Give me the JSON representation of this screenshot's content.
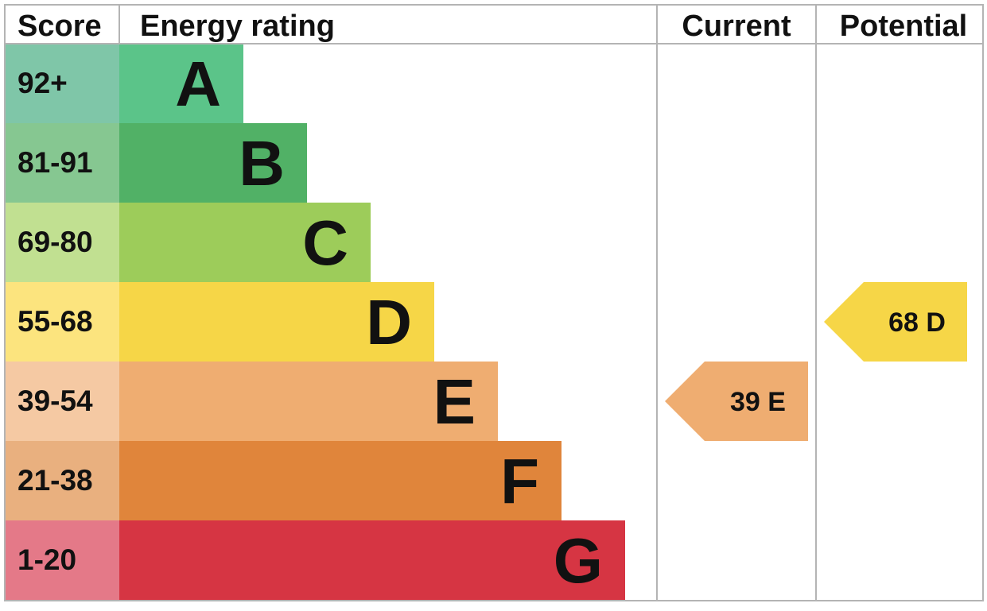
{
  "chart_data": {
    "type": "bar",
    "headers": {
      "score": "Score",
      "rating": "Energy rating",
      "current": "Current",
      "potential": "Potential"
    },
    "bands": [
      {
        "letter": "A",
        "range": "92+",
        "color": "#5bc489",
        "score_color": "#7fc6a8"
      },
      {
        "letter": "B",
        "range": "81-91",
        "color": "#51b166",
        "score_color": "#86c791"
      },
      {
        "letter": "C",
        "range": "69-80",
        "color": "#9dcc5a",
        "score_color": "#c1e091"
      },
      {
        "letter": "D",
        "range": "55-68",
        "color": "#f6d647",
        "score_color": "#fce47e"
      },
      {
        "letter": "E",
        "range": "39-54",
        "color": "#efad71",
        "score_color": "#f5c9a3"
      },
      {
        "letter": "F",
        "range": "21-38",
        "color": "#e0853b",
        "score_color": "#e9b07f"
      },
      {
        "letter": "G",
        "range": "1-20",
        "color": "#d63543",
        "score_color": "#e47988"
      }
    ],
    "current": {
      "value": 39,
      "band": "E",
      "label": "39  E",
      "color": "#efad71"
    },
    "potential": {
      "value": 68,
      "band": "D",
      "label": "68  D",
      "color": "#f6d647"
    }
  }
}
